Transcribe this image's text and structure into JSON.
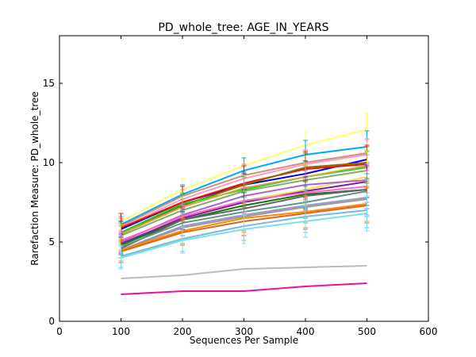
{
  "chart_data": {
    "type": "line",
    "title": "PD_whole_tree: AGE_IN_YEARS",
    "xlabel": "Sequences Per Sample",
    "ylabel": "Rarefaction Measure: PD_whole_tree",
    "xlim": [
      0,
      600
    ],
    "ylim": [
      0,
      18
    ],
    "xticks": [
      0,
      100,
      200,
      300,
      400,
      500,
      600
    ],
    "yticks": [
      0,
      5,
      10,
      15
    ],
    "grid": false,
    "legend": "none",
    "x": [
      100,
      200,
      300,
      400,
      500
    ],
    "series": [
      {
        "color": "#ffff66",
        "values": [
          6.3,
          8.3,
          9.8,
          11.1,
          12.1
        ],
        "err": [
          0.5,
          0.7,
          0.8,
          0.9,
          1.0
        ]
      },
      {
        "color": "#00aaee",
        "values": [
          6.1,
          8.0,
          9.5,
          10.5,
          11.0
        ],
        "err": [
          0.5,
          0.6,
          0.8,
          0.9,
          1.0
        ]
      },
      {
        "color": "#d2907e",
        "values": [
          6.0,
          7.9,
          9.2,
          10.0,
          10.6
        ],
        "err": [
          0.5,
          0.6,
          0.7,
          0.8,
          0.9
        ]
      },
      {
        "color": "#ff9fbf",
        "values": [
          5.9,
          7.7,
          9.0,
          9.9,
          10.5
        ],
        "err": [
          0.5,
          0.6,
          0.7,
          0.8,
          0.9
        ]
      },
      {
        "color": "#0000dd",
        "values": [
          5.8,
          7.5,
          8.6,
          9.3,
          10.2
        ],
        "err": [
          0.5,
          0.6,
          0.7,
          0.8,
          0.9
        ]
      },
      {
        "color": "#ee1111",
        "values": [
          5.9,
          7.5,
          8.7,
          9.6,
          9.9
        ],
        "err": [
          0.9,
          1.0,
          1.1,
          1.1,
          1.2
        ]
      },
      {
        "color": "#8b6b00",
        "values": [
          5.6,
          7.3,
          8.6,
          9.7,
          10.0
        ],
        "err": [
          0.6,
          0.7,
          0.8,
          0.9,
          1.0
        ]
      },
      {
        "color": "#22cc22",
        "values": [
          5.6,
          7.4,
          8.3,
          9.1,
          9.7
        ],
        "err": [
          0.6,
          0.7,
          0.8,
          0.9,
          1.0
        ]
      },
      {
        "color": "#88aa66",
        "values": [
          5.4,
          7.0,
          8.2,
          8.9,
          9.5
        ],
        "err": [
          0.6,
          0.7,
          0.8,
          0.9,
          1.0
        ]
      },
      {
        "color": "#ccaa44",
        "values": [
          5.5,
          7.2,
          8.4,
          9.1,
          9.8
        ],
        "err": [
          0.6,
          0.7,
          0.8,
          0.9,
          1.0
        ]
      },
      {
        "color": "#f0e060",
        "values": [
          4.8,
          6.6,
          7.6,
          8.3,
          9.1
        ],
        "err": [
          0.6,
          0.7,
          0.8,
          0.9,
          1.0
        ]
      },
      {
        "color": "#aa66cc",
        "values": [
          5.0,
          6.7,
          7.9,
          8.6,
          8.9
        ],
        "err": [
          0.6,
          0.7,
          0.8,
          0.9,
          1.0
        ]
      },
      {
        "color": "#772299",
        "values": [
          4.9,
          6.5,
          7.5,
          8.2,
          8.8
        ],
        "err": [
          0.6,
          0.7,
          0.8,
          0.9,
          1.0
        ]
      },
      {
        "color": "#ff66cc",
        "values": [
          5.1,
          6.6,
          7.6,
          8.1,
          8.5
        ],
        "err": [
          0.6,
          0.7,
          0.8,
          0.9,
          1.0
        ]
      },
      {
        "color": "#117711",
        "values": [
          4.8,
          6.4,
          7.3,
          8.0,
          8.3
        ],
        "err": [
          0.6,
          0.7,
          0.8,
          0.9,
          1.0
        ]
      },
      {
        "color": "#666666",
        "values": [
          4.6,
          6.4,
          7.1,
          7.9,
          8.3
        ],
        "err": [
          0.6,
          0.7,
          0.8,
          0.9,
          1.0
        ]
      },
      {
        "color": "#5a9a80",
        "values": [
          4.7,
          6.2,
          6.9,
          7.5,
          8.2
        ],
        "err": [
          0.7,
          0.8,
          0.9,
          1.0,
          1.1
        ]
      },
      {
        "color": "#9999cc",
        "values": [
          4.5,
          6.0,
          6.7,
          7.3,
          7.8
        ],
        "err": [
          0.7,
          0.8,
          0.9,
          1.0,
          1.1
        ]
      },
      {
        "color": "#999999",
        "values": [
          4.5,
          5.9,
          6.6,
          7.2,
          7.7
        ],
        "err": [
          0.7,
          0.8,
          0.9,
          1.0,
          1.1
        ]
      },
      {
        "color": "#ff8800",
        "values": [
          4.5,
          5.7,
          6.5,
          6.9,
          7.4
        ],
        "err": [
          0.7,
          0.8,
          0.9,
          1.0,
          1.1
        ]
      },
      {
        "color": "#d2691e",
        "values": [
          4.4,
          5.6,
          6.3,
          6.8,
          7.3
        ],
        "err": [
          0.7,
          0.8,
          0.9,
          1.0,
          1.1
        ]
      },
      {
        "color": "#7fb8d8",
        "values": [
          4.1,
          5.2,
          6.0,
          6.6,
          7.0
        ],
        "err": [
          0.7,
          0.8,
          0.9,
          1.0,
          1.1
        ]
      },
      {
        "color": "#77e0ee",
        "values": [
          4.0,
          5.1,
          5.8,
          6.3,
          6.8
        ],
        "err": [
          0.7,
          0.8,
          0.9,
          1.0,
          1.1
        ]
      },
      {
        "color": "#bbbbbb",
        "values": [
          2.7,
          2.9,
          3.3,
          3.4,
          3.5
        ],
        "err": [
          0,
          0,
          0,
          0,
          0
        ]
      },
      {
        "color": "#ee1199",
        "values": [
          1.7,
          1.9,
          1.9,
          2.2,
          2.4
        ],
        "err": [
          0,
          0,
          0,
          0,
          0
        ]
      }
    ]
  }
}
